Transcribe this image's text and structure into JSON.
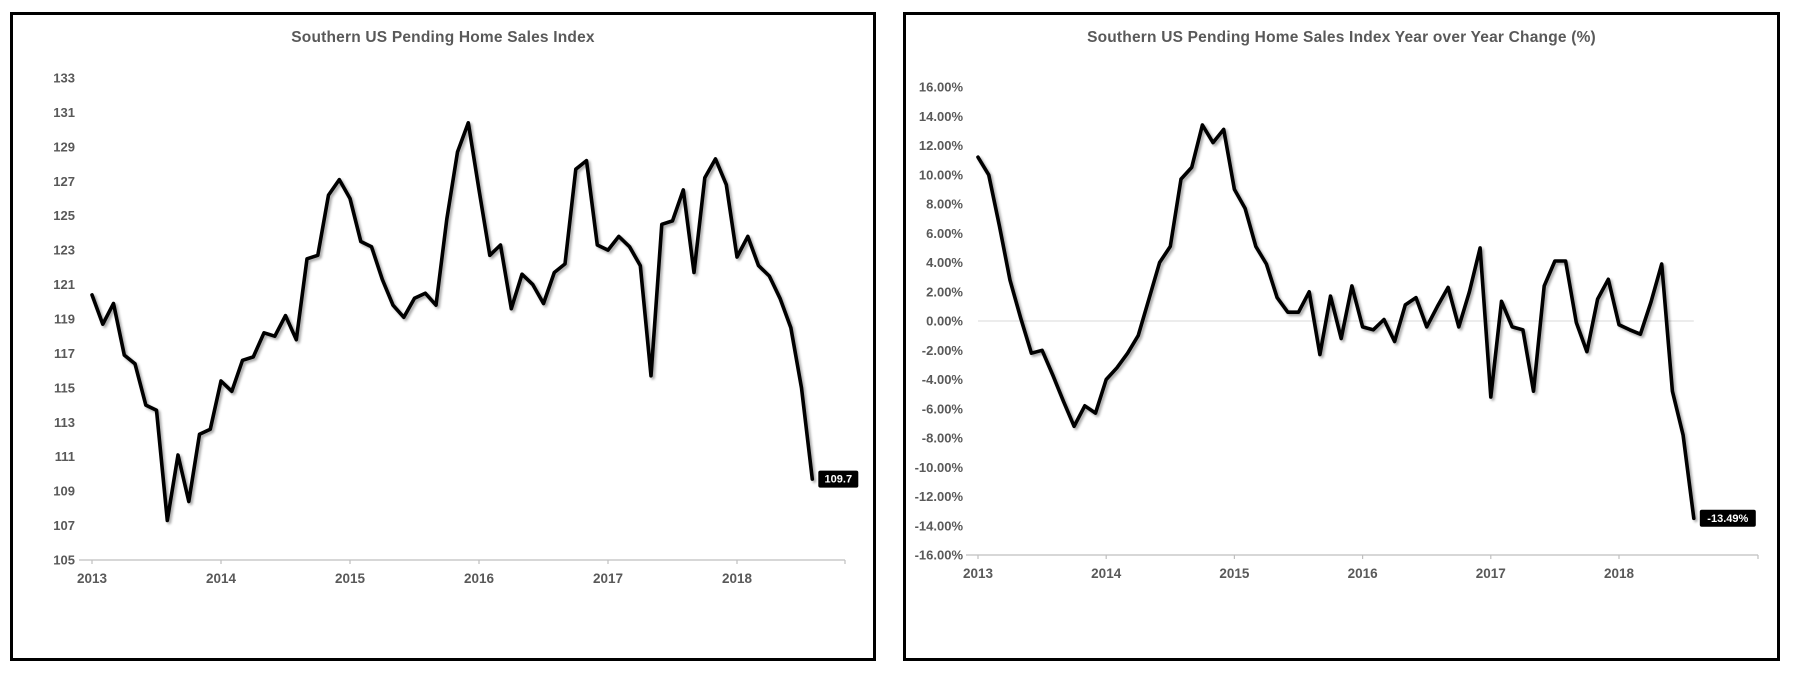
{
  "colors": {
    "background": "#ffffff",
    "panel_border": "#000000",
    "title_text": "#595959",
    "tick_text": "#595959",
    "axis_line": "#bfbfbf",
    "zero_gridline": "#d9d9d9",
    "series_line": "#000000",
    "end_label_bg": "#000000",
    "end_label_text": "#ffffff"
  },
  "chart_data": [
    {
      "type": "line",
      "title": "Southern US Pending Home Sales Index",
      "frequency": "monthly",
      "x_start": "2013-01",
      "x_end": "2018-08",
      "years": [
        "2013",
        "2014",
        "2015",
        "2016",
        "2017",
        "2018"
      ],
      "values": [
        120.4,
        118.7,
        119.9,
        116.9,
        116.4,
        114.0,
        113.7,
        107.3,
        111.1,
        108.4,
        112.3,
        112.6,
        115.4,
        114.8,
        116.6,
        116.8,
        118.2,
        118.0,
        119.2,
        117.8,
        122.5,
        122.7,
        126.2,
        127.1,
        126.0,
        123.5,
        123.2,
        121.3,
        119.8,
        119.1,
        120.2,
        120.5,
        119.8,
        124.8,
        128.7,
        130.4,
        126.5,
        122.7,
        123.3,
        119.6,
        121.6,
        121.0,
        119.9,
        121.7,
        122.2,
        127.7,
        128.2,
        123.3,
        123.0,
        123.8,
        123.2,
        122.1,
        115.7,
        124.5,
        124.7,
        126.5,
        121.7,
        127.2,
        128.3,
        126.8,
        122.6,
        123.8,
        122.1,
        121.5,
        120.2,
        118.5,
        115.0,
        109.7
      ],
      "ylim": [
        105,
        133
      ],
      "y_tick_labels": [
        "133",
        "131",
        "129",
        "127",
        "125",
        "123",
        "121",
        "119",
        "117",
        "115",
        "113",
        "111",
        "109",
        "107",
        "105"
      ],
      "zero_gridline": false,
      "grid": "bottom axis only",
      "legend": "none",
      "line_color": "#000000",
      "end_label": "109.7",
      "last_value": 109.7
    },
    {
      "type": "line",
      "title": "Southern US Pending Home Sales Index Year over Year Change (%)",
      "frequency": "monthly",
      "x_start": "2013-01",
      "x_end": "2018-08",
      "years": [
        "2013",
        "2014",
        "2015",
        "2016",
        "2017",
        "2018"
      ],
      "values": [
        11.2,
        10.0,
        6.5,
        2.8,
        0.2,
        -2.2,
        -2.0,
        -3.7,
        -5.5,
        -7.2,
        -5.8,
        -6.3,
        -4.0,
        -3.2,
        -2.2,
        -1.0,
        1.5,
        4.0,
        5.1,
        9.7,
        10.5,
        13.4,
        12.2,
        13.1,
        9.0,
        7.7,
        5.1,
        3.9,
        1.6,
        0.6,
        0.6,
        2.0,
        -2.3,
        1.7,
        -1.2,
        2.4,
        -0.4,
        -0.6,
        0.1,
        -1.4,
        1.1,
        1.6,
        -0.4,
        1.0,
        2.3,
        -0.4,
        2.0,
        5.0,
        -5.2,
        1.35,
        -0.4,
        -0.6,
        -4.8,
        2.4,
        4.1,
        4.1,
        -0.1,
        -2.1,
        1.5,
        2.85,
        -0.25,
        -0.6,
        -0.9,
        1.3,
        3.9,
        -4.8,
        -7.8,
        -13.49
      ],
      "ylim": [
        -16,
        16
      ],
      "y_tick_labels": [
        "16.00%",
        "14.00%",
        "12.00%",
        "10.00%",
        "8.00%",
        "6.00%",
        "4.00%",
        "2.00%",
        "0.00%",
        "-2.00%",
        "-4.00%",
        "-6.00%",
        "-8.00%",
        "-10.00%",
        "-12.00%",
        "-14.00%",
        "-16.00%"
      ],
      "zero_gridline": true,
      "grid": "zero line and bottom axis",
      "legend": "none",
      "line_color": "#000000",
      "end_label": "-13.49%",
      "last_value": -13.49
    }
  ]
}
